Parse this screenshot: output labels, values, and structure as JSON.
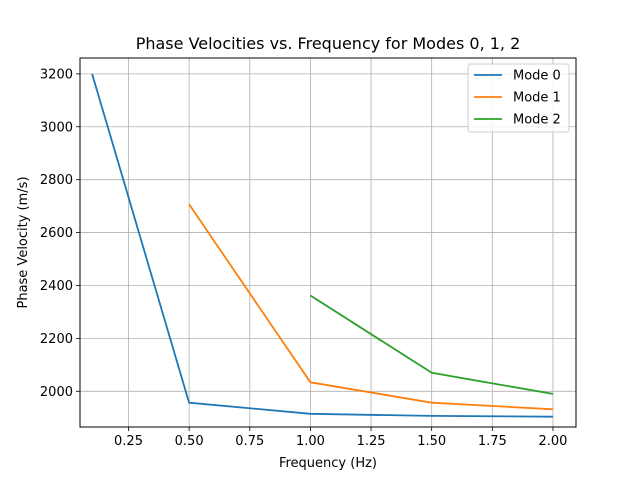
{
  "chart_data": {
    "type": "line",
    "title": "Phase Velocities vs. Frequency for Modes 0, 1, 2",
    "xlabel": "Frequency (Hz)",
    "ylabel": "Phase Velocity (m/s)",
    "xlim": [
      0.05,
      2.095
    ],
    "ylim": [
      1865,
      3260
    ],
    "xticks": [
      0.25,
      0.5,
      0.75,
      1.0,
      1.25,
      1.5,
      1.75,
      2.0
    ],
    "xtick_labels": [
      "0.25",
      "0.50",
      "0.75",
      "1.00",
      "1.25",
      "1.50",
      "1.75",
      "2.00"
    ],
    "yticks": [
      2000,
      2200,
      2400,
      2600,
      2800,
      3000,
      3200
    ],
    "ytick_labels": [
      "2000",
      "2200",
      "2400",
      "2600",
      "2800",
      "3000",
      "3200"
    ],
    "grid": true,
    "legend_position": "top-right",
    "series": [
      {
        "name": "Mode 0",
        "color": "#1f77b4",
        "x": [
          0.1,
          0.5,
          1.0,
          1.5,
          2.0
        ],
        "y": [
          3200,
          1957,
          1915,
          1907,
          1904
        ]
      },
      {
        "name": "Mode 1",
        "color": "#ff7f0e",
        "x": [
          0.5,
          1.0,
          1.5,
          2.0
        ],
        "y": [
          2707,
          2034,
          1957,
          1932
        ]
      },
      {
        "name": "Mode 2",
        "color": "#2ca02c",
        "x": [
          1.0,
          1.5,
          2.0
        ],
        "y": [
          2362,
          2070,
          1990
        ]
      }
    ]
  }
}
